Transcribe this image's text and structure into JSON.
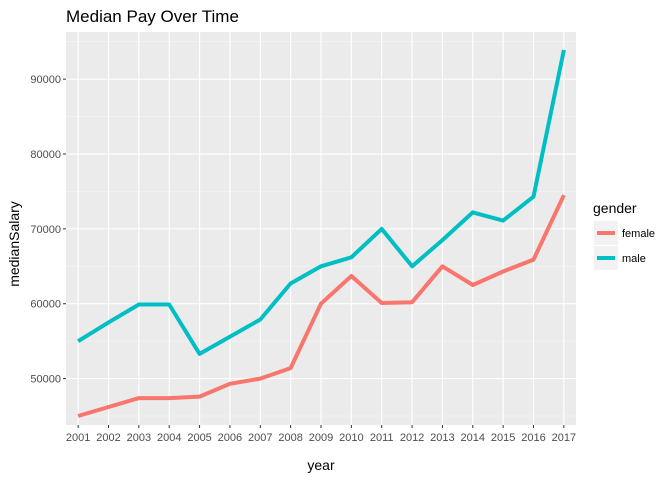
{
  "chart_data": {
    "type": "line",
    "title": "Median Pay Over Time",
    "xlabel": "year",
    "ylabel": "medianSalary",
    "x": [
      2001,
      2002,
      2003,
      2004,
      2005,
      2006,
      2007,
      2008,
      2009,
      2010,
      2011,
      2012,
      2013,
      2014,
      2015,
      2016,
      2017
    ],
    "xticks": [
      "2001",
      "2002",
      "2003",
      "2004",
      "2005",
      "2006",
      "2007",
      "2008",
      "2009",
      "2010",
      "2011",
      "2012",
      "2013",
      "2014",
      "2015",
      "2016",
      "2017"
    ],
    "yticks": [
      50000,
      60000,
      70000,
      80000,
      90000
    ],
    "ytick_labels": [
      "50000",
      "60000",
      "70000",
      "80000",
      "90000"
    ],
    "xlim": [
      2000.6,
      2017.4
    ],
    "ylim": [
      43800,
      96300
    ],
    "legend": {
      "title": "gender",
      "position": "right"
    },
    "grid": true,
    "series": [
      {
        "name": "female",
        "color": "#F8766D",
        "values": [
          45000,
          46200,
          47400,
          47400,
          47600,
          49300,
          50000,
          51400,
          60000,
          63700,
          60100,
          60200,
          65000,
          62500,
          64300,
          65900,
          74500
        ]
      },
      {
        "name": "male",
        "color": "#00BFC4",
        "values": [
          55000,
          57500,
          59900,
          59900,
          53300,
          55600,
          57900,
          62700,
          65000,
          66200,
          70000,
          65000,
          68500,
          72200,
          71100,
          74300,
          93900
        ]
      }
    ]
  }
}
